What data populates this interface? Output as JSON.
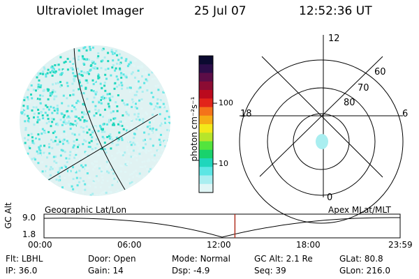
{
  "header": {
    "instrument": "Ultraviolet Imager",
    "date": "25 Jul 07",
    "time": "12:52:36 UT"
  },
  "colorbar": {
    "unit_label": "photon cm⁻²s⁻¹",
    "tick_labels": [
      "100",
      "10"
    ],
    "colors": [
      "#0b0a30",
      "#2c0d49",
      "#5c0d47",
      "#8c0c33",
      "#bb0a1e",
      "#e2241a",
      "#f4731a",
      "#f6ad16",
      "#f3e91a",
      "#b7e52a",
      "#53e43d",
      "#19d26c",
      "#1fd6bc",
      "#5ce6e4",
      "#a9eef0",
      "#e0f6f6"
    ]
  },
  "polar_plot": {
    "rings": [
      "80",
      "70",
      "60"
    ],
    "mlt_labels": {
      "top": "12",
      "left": "18",
      "right": "6",
      "bottom": "0"
    }
  },
  "timeline": {
    "axis_label": "GC Alt",
    "y_ticks": [
      "9.0",
      "1.8"
    ],
    "left_label": "Geographic Lat/Lon",
    "right_label": "Apex MLat/MLT",
    "x_ticks": [
      "00:00",
      "06:00",
      "12:00",
      "18:00",
      "23:59"
    ],
    "current_time_fraction": 0.536
  },
  "info": [
    {
      "label": "Flt:",
      "value": "LBHL"
    },
    {
      "label": "Door:",
      "value": "Open"
    },
    {
      "label": "Mode:",
      "value": "Normal"
    },
    {
      "label": "GC Alt:",
      "value": "2.1 Re"
    },
    {
      "label": "GLat:",
      "value": "80.8"
    },
    {
      "label": "IP:",
      "value": "36.0"
    },
    {
      "label": "Gain:",
      "value": "14"
    },
    {
      "label": "Dsp:",
      "value": "-4.9"
    },
    {
      "label": "Seq:",
      "value": "39"
    },
    {
      "label": "GLon:",
      "value": "216.0"
    }
  ],
  "colors": {
    "low": "#e0f6f6",
    "mid": "#a9eef0",
    "high": "#5ce6e4",
    "peak": "#1fd6bc",
    "time_marker": "#b03020"
  }
}
